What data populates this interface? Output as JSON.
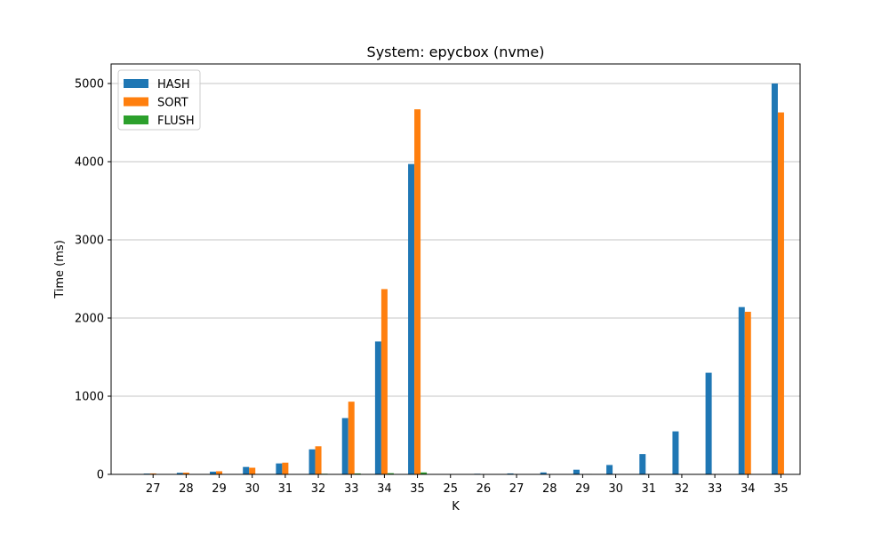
{
  "chart_data": {
    "type": "bar",
    "title": "System: epycbox (nvme)",
    "xlabel": "K",
    "ylabel": "Time (ms)",
    "ylim": [
      0,
      5250
    ],
    "yticks": [
      0,
      1000,
      2000,
      3000,
      4000,
      5000
    ],
    "grid": "y",
    "legend_position": "top-left",
    "categories": [
      "27",
      "28",
      "29",
      "30",
      "31",
      "32",
      "33",
      "34",
      "35",
      "25",
      "26",
      "27",
      "28",
      "29",
      "30",
      "31",
      "32",
      "33",
      "34",
      "35"
    ],
    "series": [
      {
        "name": "HASH",
        "color": "#1f77b4",
        "values": [
          10,
          20,
          35,
          95,
          140,
          320,
          720,
          1700,
          3970,
          3,
          8,
          12,
          25,
          60,
          120,
          260,
          550,
          1300,
          2140,
          5000
        ]
      },
      {
        "name": "SORT",
        "color": "#ff7f0e",
        "values": [
          12,
          22,
          40,
          85,
          150,
          360,
          930,
          2370,
          4670,
          0,
          0,
          0,
          0,
          0,
          0,
          0,
          0,
          0,
          2080,
          4630
        ]
      },
      {
        "name": "FLUSH",
        "color": "#2ca02c",
        "values": [
          1,
          1,
          2,
          3,
          5,
          8,
          12,
          15,
          25,
          0,
          1,
          2,
          4,
          6,
          0,
          0,
          0,
          0,
          0,
          0
        ]
      }
    ]
  }
}
